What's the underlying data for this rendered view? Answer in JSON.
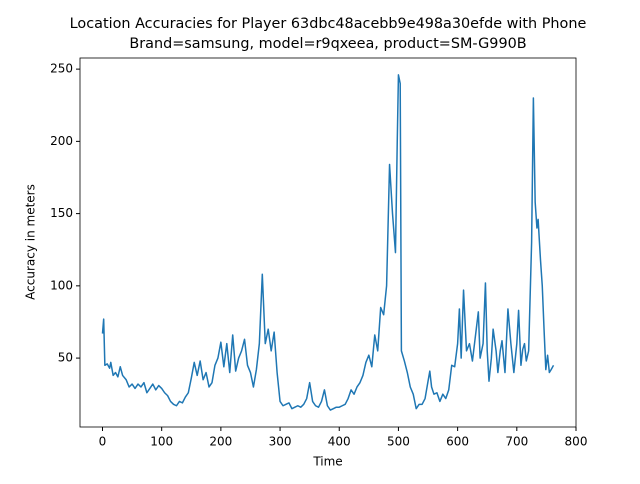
{
  "chart_data": {
    "type": "line",
    "title": [
      "Location Accuracies for Player 63dbc48acebb9e498a30efde with Phone",
      "Brand=samsung, model=r9qxeea, product=SM-G990B"
    ],
    "xlabel": "Time",
    "ylabel": "Accuracy in meters",
    "xlim": [
      -38,
      800
    ],
    "ylim": [
      2.3,
      257.7
    ],
    "xticks": [
      0,
      100,
      200,
      300,
      400,
      500,
      600,
      700,
      800
    ],
    "yticks": [
      50,
      100,
      150,
      200,
      250
    ],
    "series": [
      {
        "color": "#1f77b4",
        "x": [
          0,
          2,
          4,
          8,
          12,
          14,
          18,
          22,
          26,
          30,
          34,
          40,
          45,
          50,
          55,
          60,
          65,
          70,
          75,
          80,
          85,
          90,
          95,
          100,
          105,
          110,
          115,
          120,
          125,
          130,
          135,
          140,
          145,
          150,
          155,
          160,
          165,
          170,
          175,
          180,
          185,
          190,
          195,
          200,
          205,
          210,
          215,
          220,
          225,
          230,
          235,
          240,
          245,
          250,
          255,
          260,
          265,
          270,
          275,
          280,
          285,
          290,
          295,
          300,
          305,
          310,
          315,
          320,
          325,
          330,
          335,
          340,
          345,
          350,
          355,
          360,
          365,
          370,
          375,
          380,
          385,
          390,
          395,
          400,
          405,
          410,
          415,
          420,
          425,
          430,
          435,
          440,
          445,
          450,
          455,
          460,
          465,
          470,
          475,
          480,
          485,
          490,
          495,
          498,
          500,
          503,
          505,
          510,
          515,
          520,
          525,
          530,
          535,
          540,
          545,
          550,
          553,
          556,
          560,
          565,
          570,
          575,
          580,
          585,
          590,
          595,
          600,
          603,
          606,
          610,
          615,
          620,
          625,
          630,
          635,
          638,
          643,
          647,
          650,
          653,
          657,
          660,
          665,
          668,
          672,
          675,
          680,
          685,
          690,
          695,
          700,
          703,
          707,
          710,
          713,
          716,
          720,
          725,
          728,
          731,
          734,
          736,
          740,
          743,
          746,
          749,
          752,
          755,
          758,
          762
        ],
        "values": [
          67,
          77,
          45,
          46,
          43,
          47,
          38,
          40,
          37,
          44,
          38,
          35,
          30,
          32,
          29,
          32,
          30,
          33,
          26,
          29,
          32,
          28,
          31,
          29,
          26,
          24,
          20,
          18,
          17,
          20,
          19,
          23,
          26,
          36,
          47,
          38,
          48,
          35,
          40,
          30,
          33,
          45,
          50,
          61,
          44,
          60,
          40,
          66,
          41,
          50,
          55,
          63,
          45,
          40,
          30,
          42,
          60,
          108,
          60,
          70,
          55,
          68,
          40,
          20,
          17,
          18,
          19,
          15,
          16,
          17,
          16,
          18,
          22,
          33,
          20,
          17,
          16,
          20,
          28,
          17,
          14,
          15,
          16,
          16,
          17,
          18,
          22,
          28,
          25,
          30,
          33,
          38,
          47,
          52,
          44,
          66,
          55,
          85,
          80,
          100,
          184,
          150,
          123,
          200,
          246,
          240,
          55,
          48,
          40,
          30,
          25,
          15,
          18,
          18,
          22,
          34,
          41,
          30,
          25,
          26,
          20,
          25,
          22,
          28,
          45,
          44,
          60,
          84,
          50,
          97,
          55,
          60,
          48,
          65,
          82,
          50,
          60,
          102,
          55,
          34,
          50,
          70,
          55,
          40,
          55,
          62,
          40,
          84,
          60,
          40,
          60,
          83,
          45,
          56,
          60,
          48,
          55,
          130,
          230,
          158,
          140,
          146,
          118,
          100,
          70,
          42,
          52,
          40,
          42,
          45
        ]
      }
    ]
  }
}
